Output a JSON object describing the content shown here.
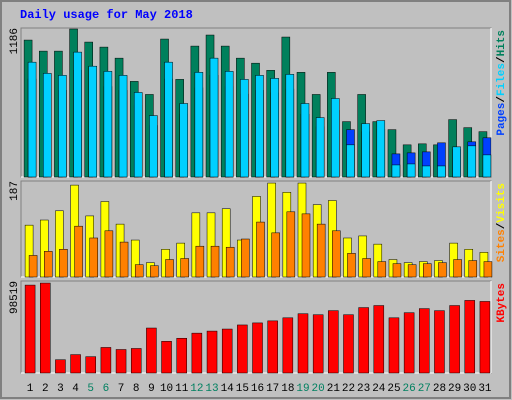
{
  "chart_data": [
    {
      "type": "bar",
      "title": "Daily usage for May 2018",
      "categories": [
        "1",
        "2",
        "3",
        "4",
        "5",
        "6",
        "7",
        "8",
        "9",
        "10",
        "11",
        "12",
        "13",
        "14",
        "15",
        "16",
        "17",
        "18",
        "19",
        "20",
        "21",
        "22",
        "23",
        "24",
        "25",
        "26",
        "27",
        "28",
        "29",
        "30",
        "31"
      ],
      "category_colors": [
        "#000000",
        "#000000",
        "#000000",
        "#000000",
        "#008060",
        "#008060",
        "#000000",
        "#000000",
        "#000000",
        "#000000",
        "#000000",
        "#008060",
        "#008060",
        "#000000",
        "#000000",
        "#000000",
        "#000000",
        "#000000",
        "#008060",
        "#008060",
        "#000000",
        "#000000",
        "#000000",
        "#000000",
        "#000000",
        "#008060",
        "#008060",
        "#000000",
        "#000000",
        "#000000",
        "#000000"
      ],
      "legend_separator": "/",
      "ylim": [
        0,
        1186
      ],
      "yticks": [
        1186
      ],
      "series": [
        {
          "name": "Hits",
          "color": "#00805c",
          "values": [
            1090,
            1002,
            1002,
            1178,
            1074,
            1034,
            946,
            761,
            657,
            1098,
            777,
            1042,
            1130,
            1042,
            946,
            906,
            849,
            1114,
            833,
            657,
            833,
            441,
            657,
            441,
            377,
            256,
            264,
            256,
            457,
            393,
            361
          ]
        },
        {
          "name": "Files",
          "color": "#00d0ff",
          "values": [
            914,
            825,
            809,
            994,
            882,
            841,
            809,
            673,
            489,
            914,
            585,
            833,
            946,
            841,
            777,
            809,
            785,
            817,
            585,
            473,
            625,
            256,
            425,
            449,
            96,
            104,
            88,
            88,
            240,
            248,
            176
          ]
        },
        {
          "name": "Pages",
          "color": "#0040ff",
          "values": [
            780,
            700,
            690,
            850,
            750,
            720,
            690,
            570,
            410,
            780,
            500,
            710,
            810,
            720,
            660,
            690,
            670,
            700,
            500,
            400,
            530,
            377,
            360,
            380,
            184,
            192,
            200,
            272,
            220,
            280,
            312
          ]
        }
      ]
    },
    {
      "type": "bar",
      "ylim": [
        0,
        187
      ],
      "yticks": [
        187
      ],
      "series": [
        {
          "name": "Visits",
          "color": "#ffff00",
          "values": [
            101,
            111,
            129,
            179,
            119,
            147,
            103,
            72,
            28,
            54,
            66,
            125,
            125,
            133,
            72,
            157,
            183,
            165,
            183,
            141,
            149,
            76,
            80,
            64,
            34,
            28,
            30,
            32,
            66,
            54,
            48
          ]
        },
        {
          "name": "Sites",
          "color": "#ff8000",
          "values": [
            42,
            50,
            54,
            99,
            76,
            90,
            68,
            24,
            22,
            34,
            36,
            60,
            60,
            58,
            74,
            107,
            86,
            127,
            123,
            103,
            90,
            46,
            36,
            30,
            26,
            24,
            26,
            28,
            34,
            32,
            30
          ]
        }
      ]
    },
    {
      "type": "bar",
      "ylim": [
        0,
        98519
      ],
      "yticks": [
        98519
      ],
      "series": [
        {
          "name": "KBytes",
          "color": "#ff0000",
          "values": [
            94140,
            96330,
            14230,
            19700,
            17510,
            27360,
            25170,
            26270,
            48160,
            33930,
            37220,
            42690,
            44880,
            47070,
            51450,
            53640,
            55830,
            59110,
            63490,
            62400,
            66780,
            62400,
            70060,
            72250,
            59110,
            64590,
            68970,
            66780,
            72250,
            77730,
            76630
          ]
        }
      ]
    }
  ]
}
